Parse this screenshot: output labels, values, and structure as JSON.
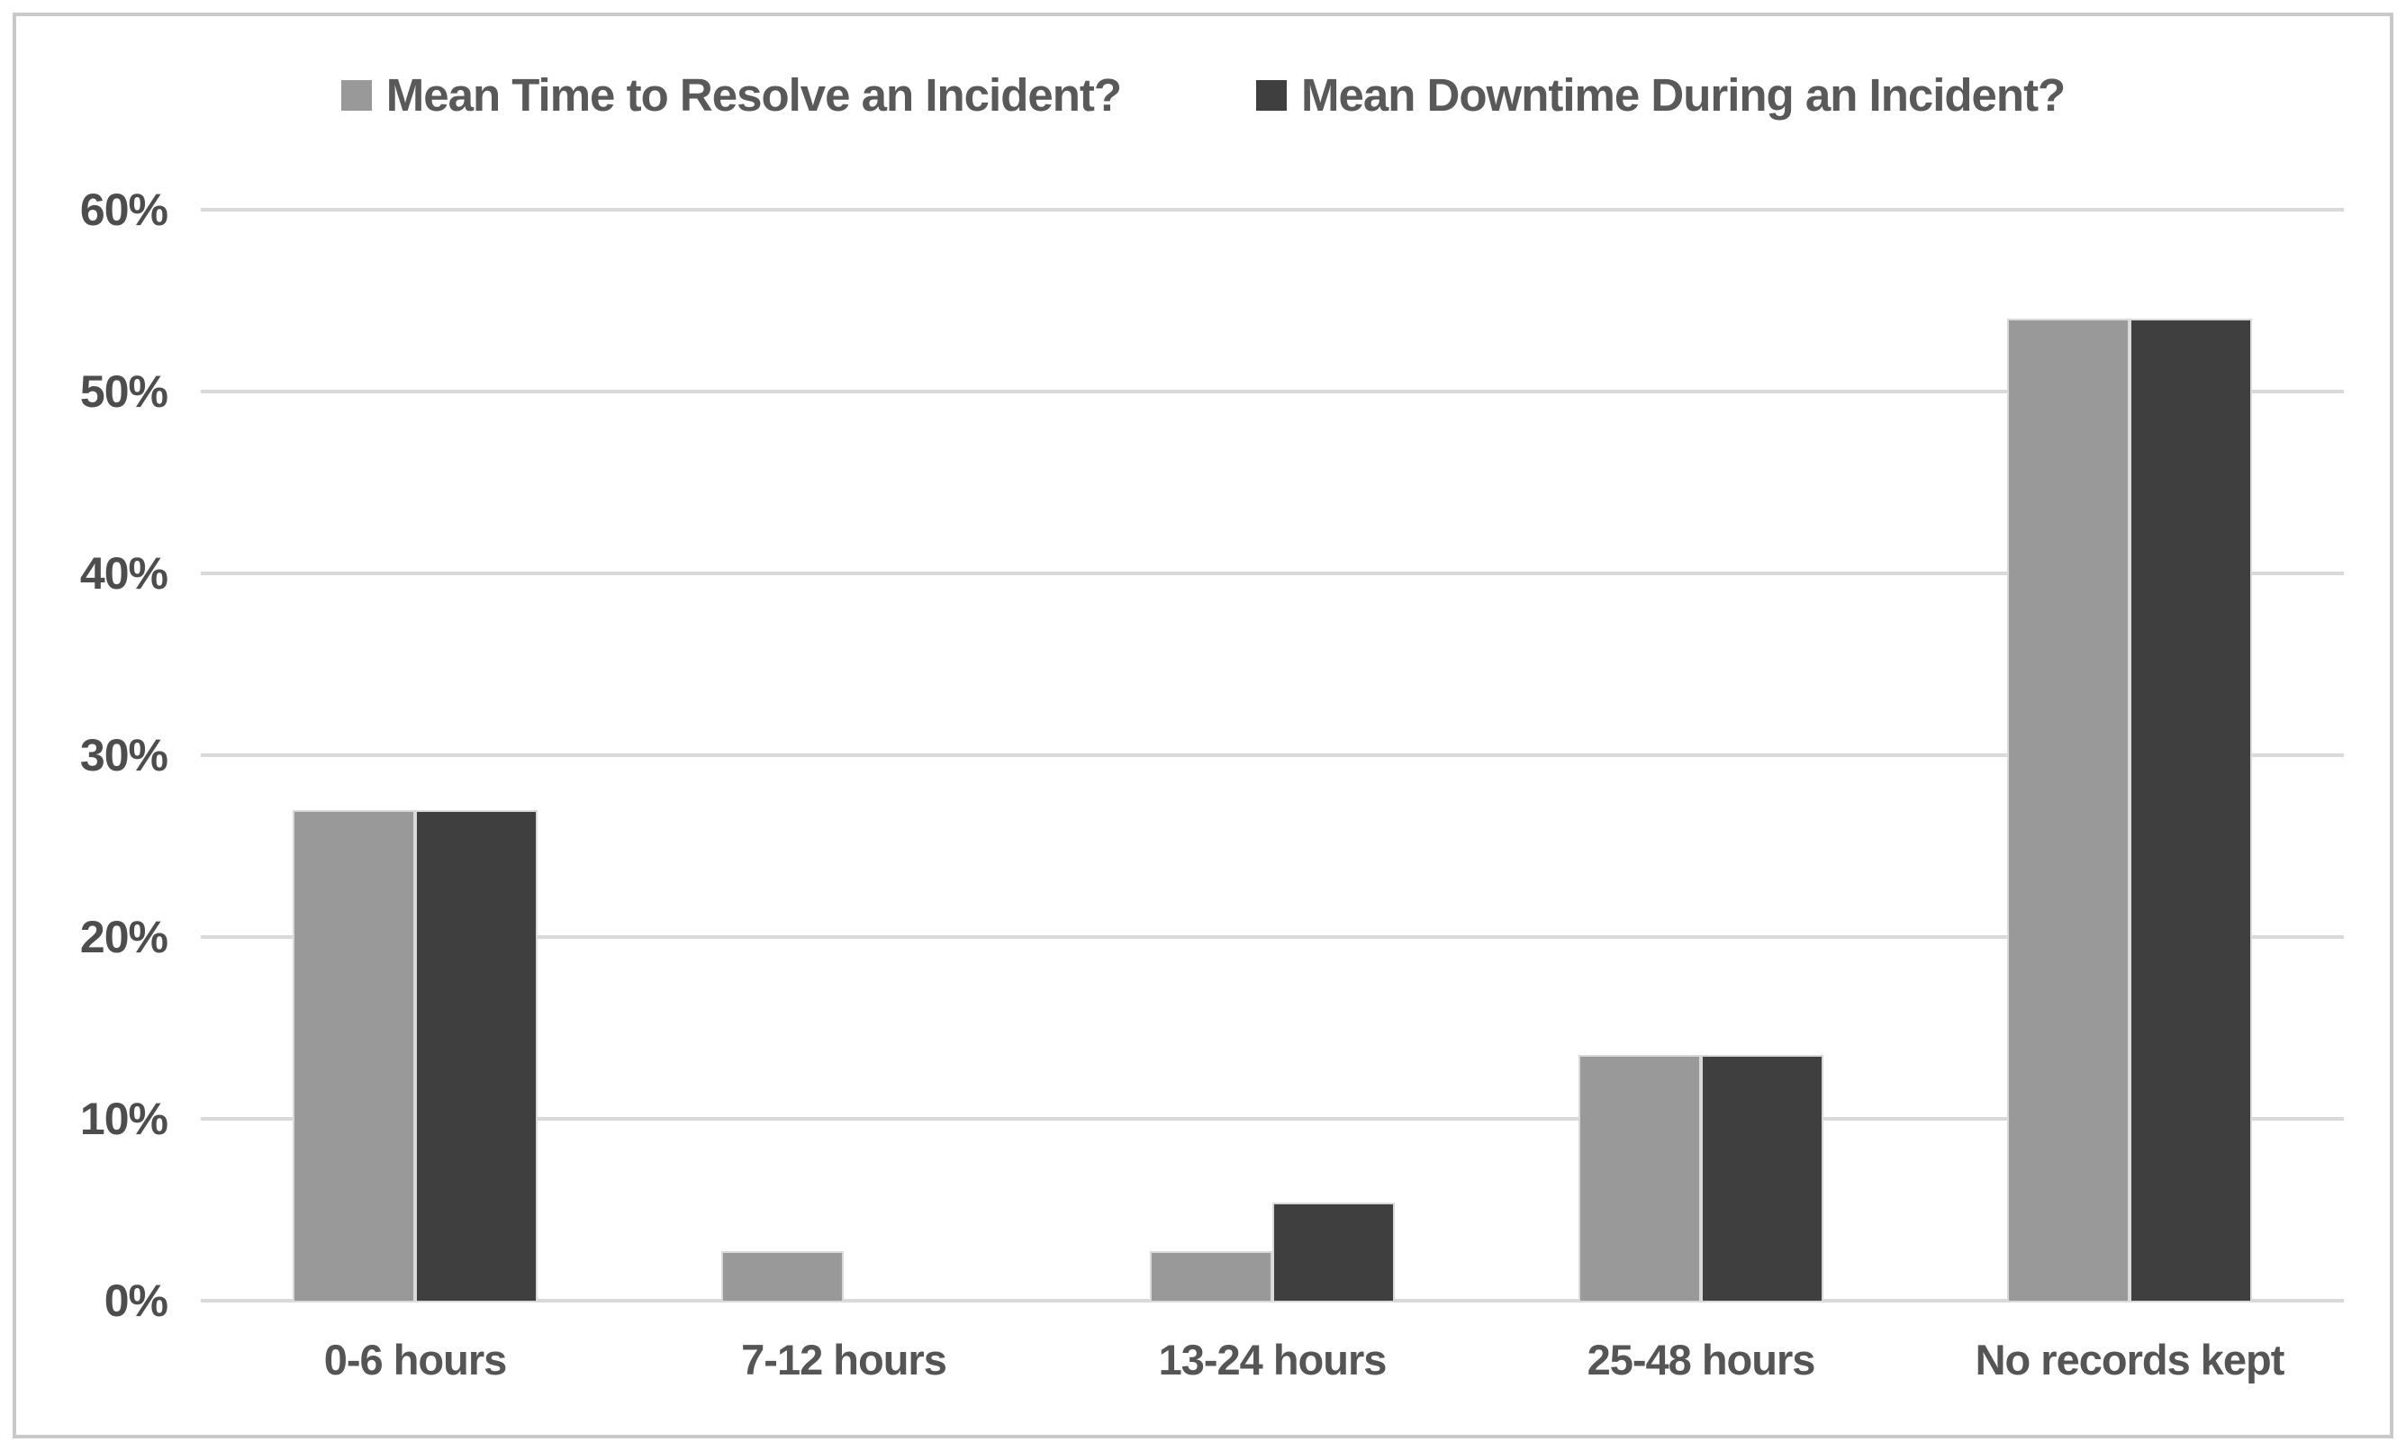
{
  "chart_data": {
    "type": "bar",
    "title": "",
    "categories": [
      "0-6 hours",
      "7-12 hours",
      "13-24 hours",
      "25-48 hours",
      "No records kept"
    ],
    "series": [
      {
        "name": "Mean Time to Resolve an Incident?",
        "color": "#999999",
        "values": [
          27,
          2.7,
          2.7,
          13.5,
          54
        ]
      },
      {
        "name": "Mean Downtime During an Incident?",
        "color": "#3f3f3f",
        "values": [
          27,
          0,
          5.4,
          13.5,
          54
        ]
      }
    ],
    "xlabel": "",
    "ylabel": "",
    "ylim": [
      0,
      60
    ],
    "yticks": [
      {
        "value": 0,
        "label": "0%"
      },
      {
        "value": 10,
        "label": "10%"
      },
      {
        "value": 20,
        "label": "20%"
      },
      {
        "value": 30,
        "label": "30%"
      },
      {
        "value": 40,
        "label": "40%"
      },
      {
        "value": 50,
        "label": "50%"
      },
      {
        "value": 60,
        "label": "60%"
      }
    ],
    "grid": true,
    "legend_position": "top"
  }
}
